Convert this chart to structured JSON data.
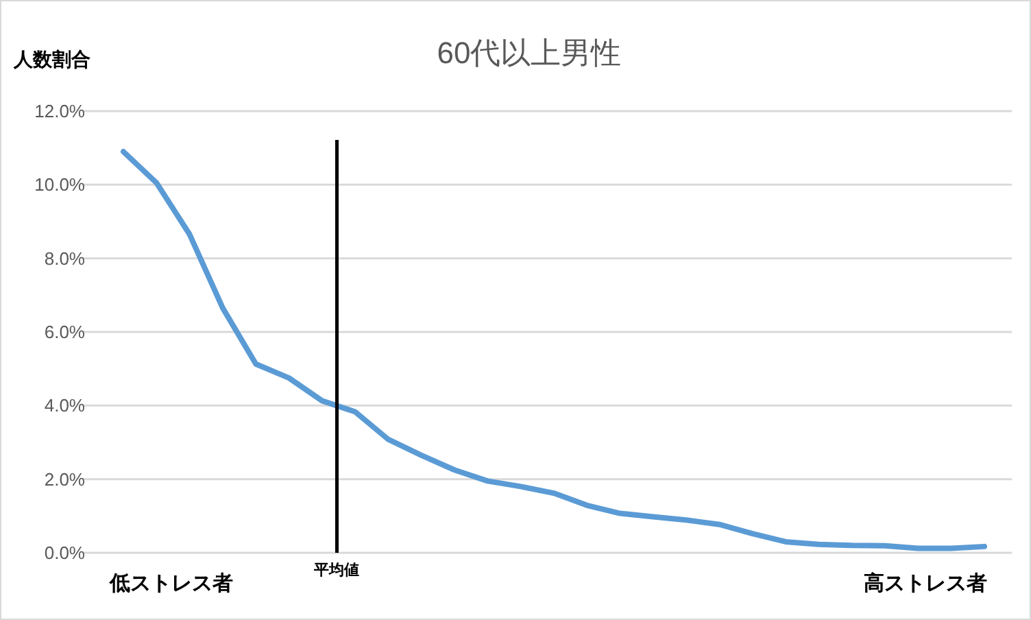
{
  "chart_data": {
    "type": "line",
    "title": "60代以上男性",
    "ylabel": "人数割合",
    "categories": [
      null,
      null,
      null,
      null,
      null,
      null,
      null,
      null,
      null,
      null,
      null,
      null,
      null,
      null,
      null,
      null,
      null,
      null,
      null,
      null,
      null,
      null,
      null,
      null,
      null,
      null,
      null
    ],
    "series": [
      {
        "color": "#5b9bd5",
        "values": [
          10.9,
          10.05,
          8.65,
          6.65,
          5.13,
          4.75,
          4.13,
          3.83,
          3.08,
          2.65,
          2.25,
          1.95,
          1.8,
          1.62,
          1.29,
          1.07,
          0.98,
          0.89,
          0.77,
          0.52,
          0.3,
          0.23,
          0.2,
          0.19,
          0.12,
          0.12,
          0.17
        ]
      }
    ],
    "ylim": [
      0,
      12
    ],
    "yticks": [
      {
        "value": 0,
        "label": "0.0%"
      },
      {
        "value": 2,
        "label": "2.0%"
      },
      {
        "value": 4,
        "label": "4.0%"
      },
      {
        "value": 6,
        "label": "6.0%"
      },
      {
        "value": 8,
        "label": "8.0%"
      },
      {
        "value": 10,
        "label": "10.0%"
      },
      {
        "value": 12,
        "label": "12.0%"
      }
    ],
    "grid": "y",
    "marker": "none",
    "line_style": "solid",
    "annotations": [
      "低ストレス者",
      "高ストレス者",
      "平均値"
    ]
  }
}
